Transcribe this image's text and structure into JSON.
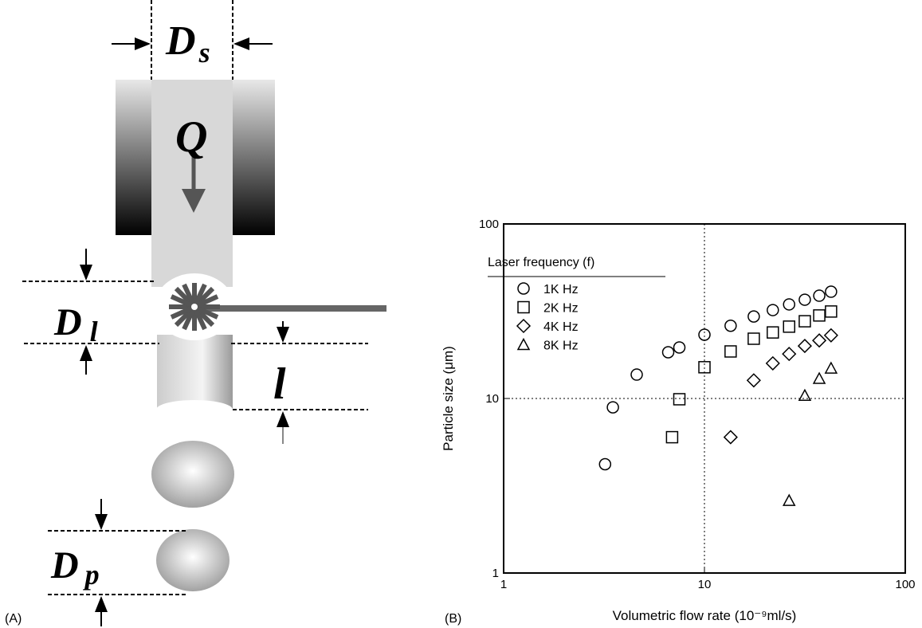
{
  "panel_a": {
    "label": "(A)",
    "nozzle_diameter": {
      "symbol": "D",
      "subscript": "s"
    },
    "flow": "Q",
    "jet_diameter": {
      "symbol": "D",
      "subscript": "l"
    },
    "breakup_length": "l",
    "particle_diameter": {
      "symbol": "D",
      "subscript": "p"
    }
  },
  "chart_data": {
    "type": "scatter",
    "panel_label": "(B)",
    "xlabel": "Volumetric flow rate (10⁻⁹ml/s)",
    "ylabel": "Particle size (μm)",
    "xscale": "log",
    "yscale": "log",
    "xlim": [
      1,
      100
    ],
    "ylim": [
      1,
      100
    ],
    "xticks": [
      1,
      10,
      100
    ],
    "yticks": [
      1,
      10,
      100
    ],
    "grid": true,
    "legend_title": "Laser frequency (f)",
    "legend_position": "upper left",
    "series": [
      {
        "name": "1K Hz",
        "color": "#000000",
        "marker": "circle",
        "x": [
          3.2,
          3.5,
          4.6,
          6.6,
          7.5,
          10,
          13.5,
          17.6,
          21.9,
          26.4,
          31.6,
          37.3,
          42.7
        ],
        "values": [
          4.2,
          8.9,
          13.7,
          18.4,
          19.6,
          23.2,
          26.1,
          29.5,
          32.1,
          34.6,
          36.8,
          38.8,
          40.9
        ]
      },
      {
        "name": "2K Hz",
        "color": "#000000",
        "marker": "square",
        "x": [
          6.9,
          7.5,
          10,
          13.5,
          17.6,
          21.9,
          26.4,
          31.6,
          37.3,
          42.7
        ],
        "values": [
          6.0,
          9.9,
          15.1,
          18.6,
          22.0,
          23.9,
          25.8,
          27.7,
          29.9,
          31.5
        ]
      },
      {
        "name": "4K Hz",
        "color": "#000000",
        "marker": "diamond",
        "x": [
          13.5,
          17.6,
          21.9,
          26.4,
          31.6,
          37.3,
          42.7
        ],
        "values": [
          6.0,
          12.7,
          15.9,
          18.0,
          20.0,
          21.5,
          23.0
        ]
      },
      {
        "name": "8K Hz",
        "color": "#000000",
        "marker": "triangle",
        "x": [
          26.4,
          31.6,
          37.3,
          42.7
        ],
        "values": [
          2.6,
          10.4,
          13.0,
          14.9
        ]
      }
    ]
  }
}
